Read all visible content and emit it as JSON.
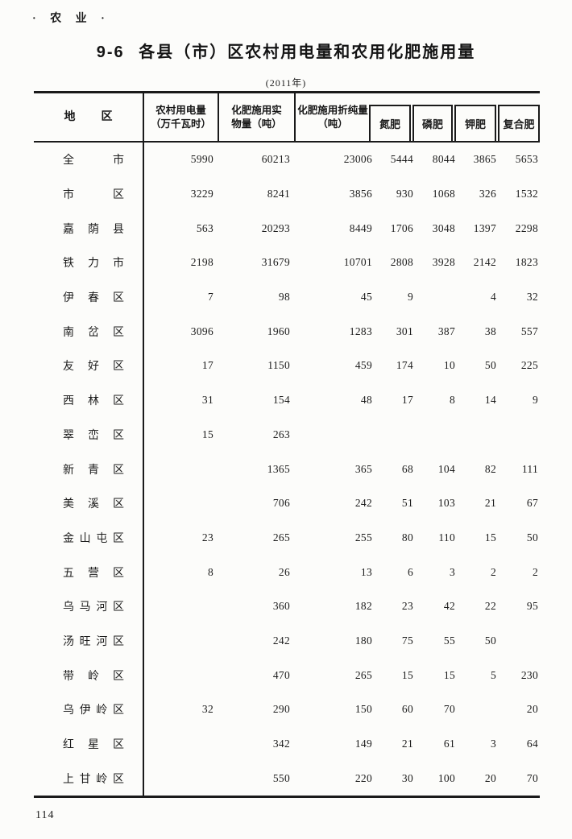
{
  "page": {
    "category_label": "· 农 业 ·",
    "title": "9-6 各县（市）区农村用电量和农用化肥施用量",
    "year_note": "(2011年)",
    "page_number": "114"
  },
  "table": {
    "header": {
      "region": "地 区",
      "electricity_line1": "农村用电量",
      "electricity_line2": "（万千瓦时）",
      "fert_physical_line1": "化肥施用实",
      "fert_physical_line2": "物量（吨）",
      "fert_pure_line1": "化肥施用折纯量",
      "fert_pure_line2": "（吨）",
      "nitrogen": "氮肥",
      "phosphate": "磷肥",
      "potash": "钾肥",
      "compound": "复合肥"
    },
    "rows": [
      {
        "name": "全市",
        "values": [
          "5990",
          "60213",
          "23006",
          "5444",
          "8044",
          "3865",
          "5653"
        ]
      },
      {
        "name": "市区",
        "values": [
          "3229",
          "8241",
          "3856",
          "930",
          "1068",
          "326",
          "1532"
        ]
      },
      {
        "name": "嘉荫县",
        "values": [
          "563",
          "20293",
          "8449",
          "1706",
          "3048",
          "1397",
          "2298"
        ]
      },
      {
        "name": "铁力市",
        "values": [
          "2198",
          "31679",
          "10701",
          "2808",
          "3928",
          "2142",
          "1823"
        ]
      },
      {
        "name": "伊春区",
        "values": [
          "7",
          "98",
          "45",
          "9",
          "",
          "4",
          "32"
        ]
      },
      {
        "name": "南岔区",
        "values": [
          "3096",
          "1960",
          "1283",
          "301",
          "387",
          "38",
          "557"
        ]
      },
      {
        "name": "友好区",
        "values": [
          "17",
          "1150",
          "459",
          "174",
          "10",
          "50",
          "225"
        ]
      },
      {
        "name": "西林区",
        "values": [
          "31",
          "154",
          "48",
          "17",
          "8",
          "14",
          "9"
        ]
      },
      {
        "name": "翠峦区",
        "values": [
          "15",
          "263",
          "",
          "",
          "",
          "",
          ""
        ]
      },
      {
        "name": "新青区",
        "values": [
          "",
          "1365",
          "365",
          "68",
          "104",
          "82",
          "111"
        ]
      },
      {
        "name": "美溪区",
        "values": [
          "",
          "706",
          "242",
          "51",
          "103",
          "21",
          "67"
        ]
      },
      {
        "name": "金山屯区",
        "values": [
          "23",
          "265",
          "255",
          "80",
          "110",
          "15",
          "50"
        ]
      },
      {
        "name": "五营区",
        "values": [
          "8",
          "26",
          "13",
          "6",
          "3",
          "2",
          "2"
        ]
      },
      {
        "name": "乌马河区",
        "values": [
          "",
          "360",
          "182",
          "23",
          "42",
          "22",
          "95"
        ]
      },
      {
        "name": "汤旺河区",
        "values": [
          "",
          "242",
          "180",
          "75",
          "55",
          "50",
          ""
        ]
      },
      {
        "name": "带岭区",
        "values": [
          "",
          "470",
          "265",
          "15",
          "15",
          "5",
          "230"
        ]
      },
      {
        "name": "乌伊岭区",
        "values": [
          "32",
          "290",
          "150",
          "60",
          "70",
          "",
          "20"
        ]
      },
      {
        "name": "红星区",
        "values": [
          "",
          "342",
          "149",
          "21",
          "61",
          "3",
          "64"
        ]
      },
      {
        "name": "上甘岭区",
        "values": [
          "",
          "550",
          "220",
          "30",
          "100",
          "20",
          "70"
        ]
      }
    ]
  }
}
